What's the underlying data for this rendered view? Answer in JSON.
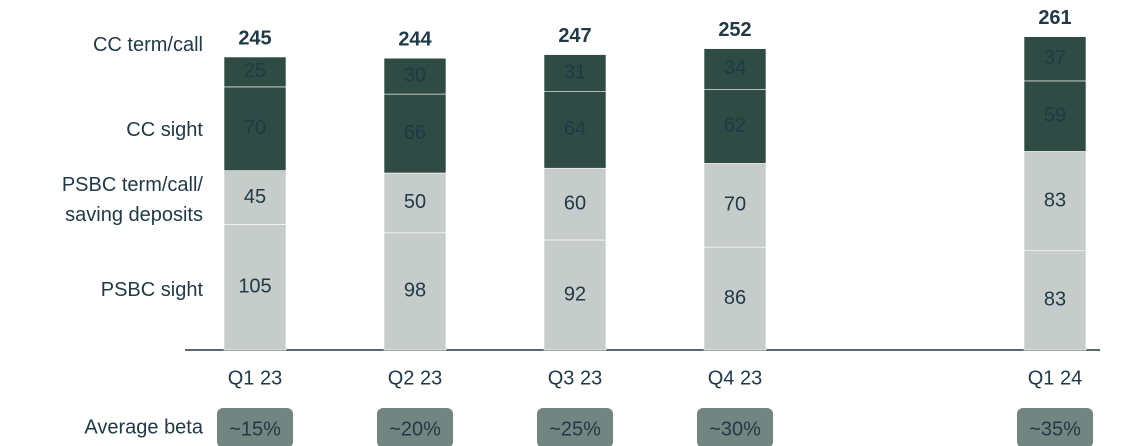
{
  "chart_data": {
    "type": "stacked_bar",
    "categories": [
      "Q1 23",
      "Q2 23",
      "Q3 23",
      "Q4 23",
      "Q1 24"
    ],
    "series": [
      {
        "name": "PSBC sight",
        "color": "#c6ccc9",
        "values": [
          105,
          98,
          92,
          86,
          83
        ]
      },
      {
        "name": "PSBC term/call/ saving deposits",
        "color": "#c6ccc9",
        "values": [
          45,
          50,
          60,
          70,
          83
        ]
      },
      {
        "name": "CC sight",
        "color": "#2f4b43",
        "values": [
          70,
          66,
          64,
          62,
          59
        ]
      },
      {
        "name": "CC term/call",
        "color": "#2f4b43",
        "values": [
          25,
          30,
          31,
          34,
          37
        ]
      }
    ],
    "totals": [
      245,
      244,
      247,
      252,
      261
    ],
    "beta": {
      "label": "Average beta",
      "values": [
        "~15%",
        "~20%",
        "~25%",
        "~30%",
        "~35%"
      ]
    }
  }
}
